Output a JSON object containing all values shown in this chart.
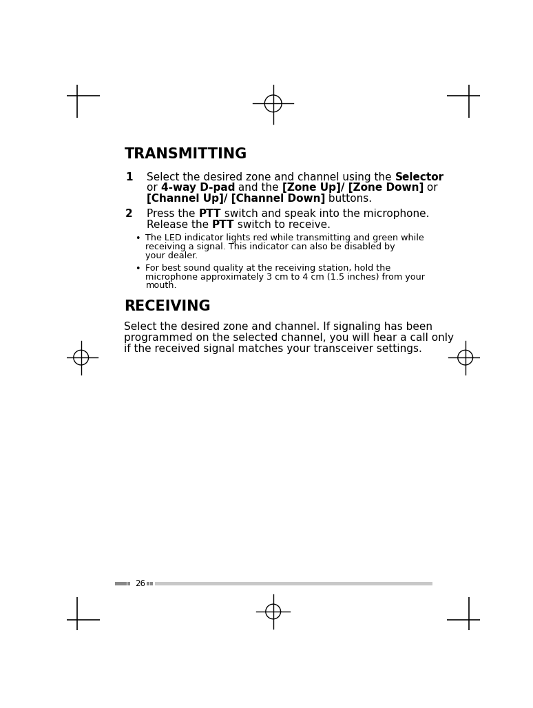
{
  "bg_color": "#ffffff",
  "page_number": "26",
  "title_transmitting": "TRANSMITTING",
  "title_receiving": "RECEIVING",
  "text_color": "#000000",
  "title_color": "#000000",
  "corner_mark_color": "#000000",
  "crosshair_color": "#000000",
  "bar_dark_color": "#888888",
  "bar_light_color": "#c8c8c8"
}
